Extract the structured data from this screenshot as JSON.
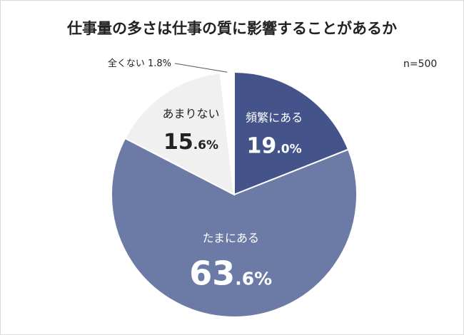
{
  "chart_data": {
    "type": "pie",
    "title": "仕事量の多さは仕事の質に影響することがあるか",
    "note": "n=500",
    "slices": [
      {
        "label": "頻繁にある",
        "value": 19.0,
        "int": "19",
        "dec": ".0%",
        "color": "#44548a",
        "text_color": "#ffffff"
      },
      {
        "label": "たまにある",
        "value": 63.6,
        "int": "63",
        "dec": ".6%",
        "color": "#6c7ba6",
        "text_color": "#ffffff"
      },
      {
        "label": "あまりない",
        "value": 15.6,
        "int": "15",
        "dec": ".6%",
        "color": "#f0f0f0",
        "text_color": "#222222"
      },
      {
        "label": "全くない",
        "value": 1.8,
        "int": "",
        "dec": "",
        "color": "#ffffff",
        "text_color": "#222222",
        "outside_text": "全くない 1.8%"
      }
    ]
  }
}
